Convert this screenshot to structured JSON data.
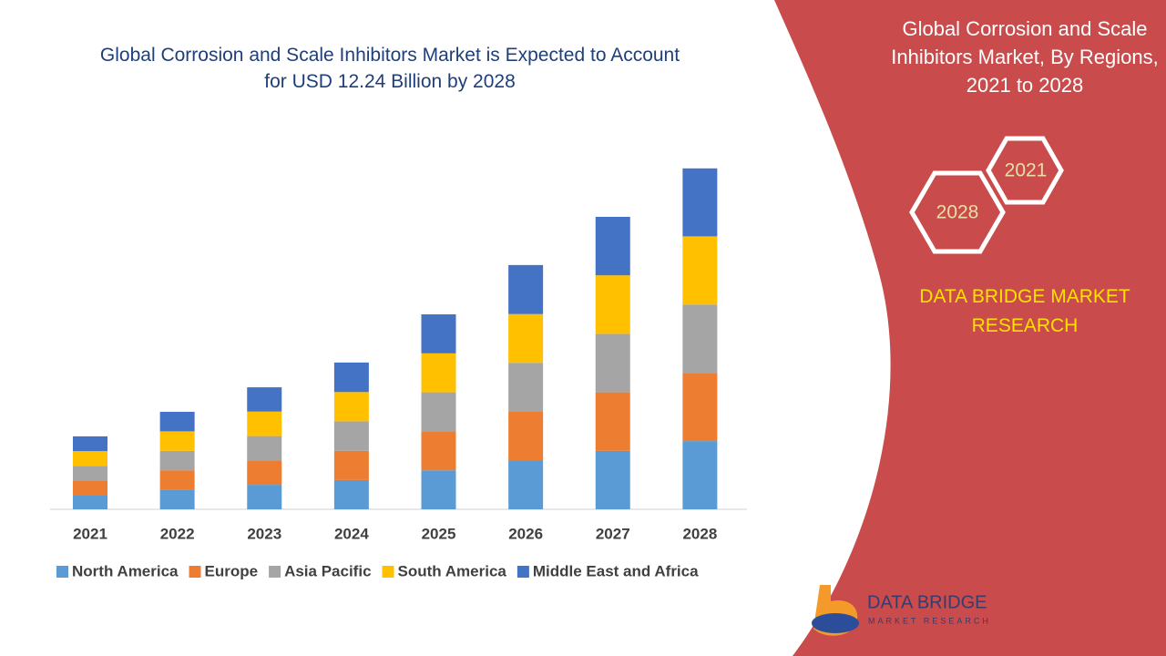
{
  "chart_data": {
    "type": "stacked_bar",
    "title": "Global Corrosion and Scale Inhibitors Market is Expected to Account for USD 12.24 Billion by 2028",
    "categories": [
      "2021",
      "2022",
      "2023",
      "2024",
      "2025",
      "2026",
      "2027",
      "2028"
    ],
    "series": [
      {
        "name": "North America",
        "color": "#5b9bd5",
        "values": [
          0.52,
          0.7,
          0.88,
          1.05,
          1.4,
          1.75,
          2.1,
          2.45
        ]
      },
      {
        "name": "Europe",
        "color": "#ed7d31",
        "values": [
          0.52,
          0.7,
          0.88,
          1.05,
          1.4,
          1.75,
          2.1,
          2.45
        ]
      },
      {
        "name": "Asia Pacific",
        "color": "#a5a5a5",
        "values": [
          0.52,
          0.7,
          0.87,
          1.06,
          1.4,
          1.76,
          2.1,
          2.45
        ]
      },
      {
        "name": "South America",
        "color": "#ffc000",
        "values": [
          0.53,
          0.7,
          0.88,
          1.05,
          1.4,
          1.75,
          2.1,
          2.45
        ]
      },
      {
        "name": "Middle East and Africa",
        "color": "#4472c4",
        "values": [
          0.53,
          0.7,
          0.87,
          1.06,
          1.4,
          1.76,
          2.1,
          2.44
        ]
      }
    ],
    "ylim": [
      0,
      14
    ],
    "legend": "bottom"
  },
  "side_panel": {
    "title": "Global Corrosion and Scale Inhibitors Market, By Regions, 2021 to 2028",
    "hexagons": [
      "2021",
      "2028"
    ],
    "brand": "DATA BRIDGE MARKET RESEARCH",
    "logo": {
      "name": "DATA BRIDGE",
      "tagline": "MARKET RESEARCH"
    }
  }
}
